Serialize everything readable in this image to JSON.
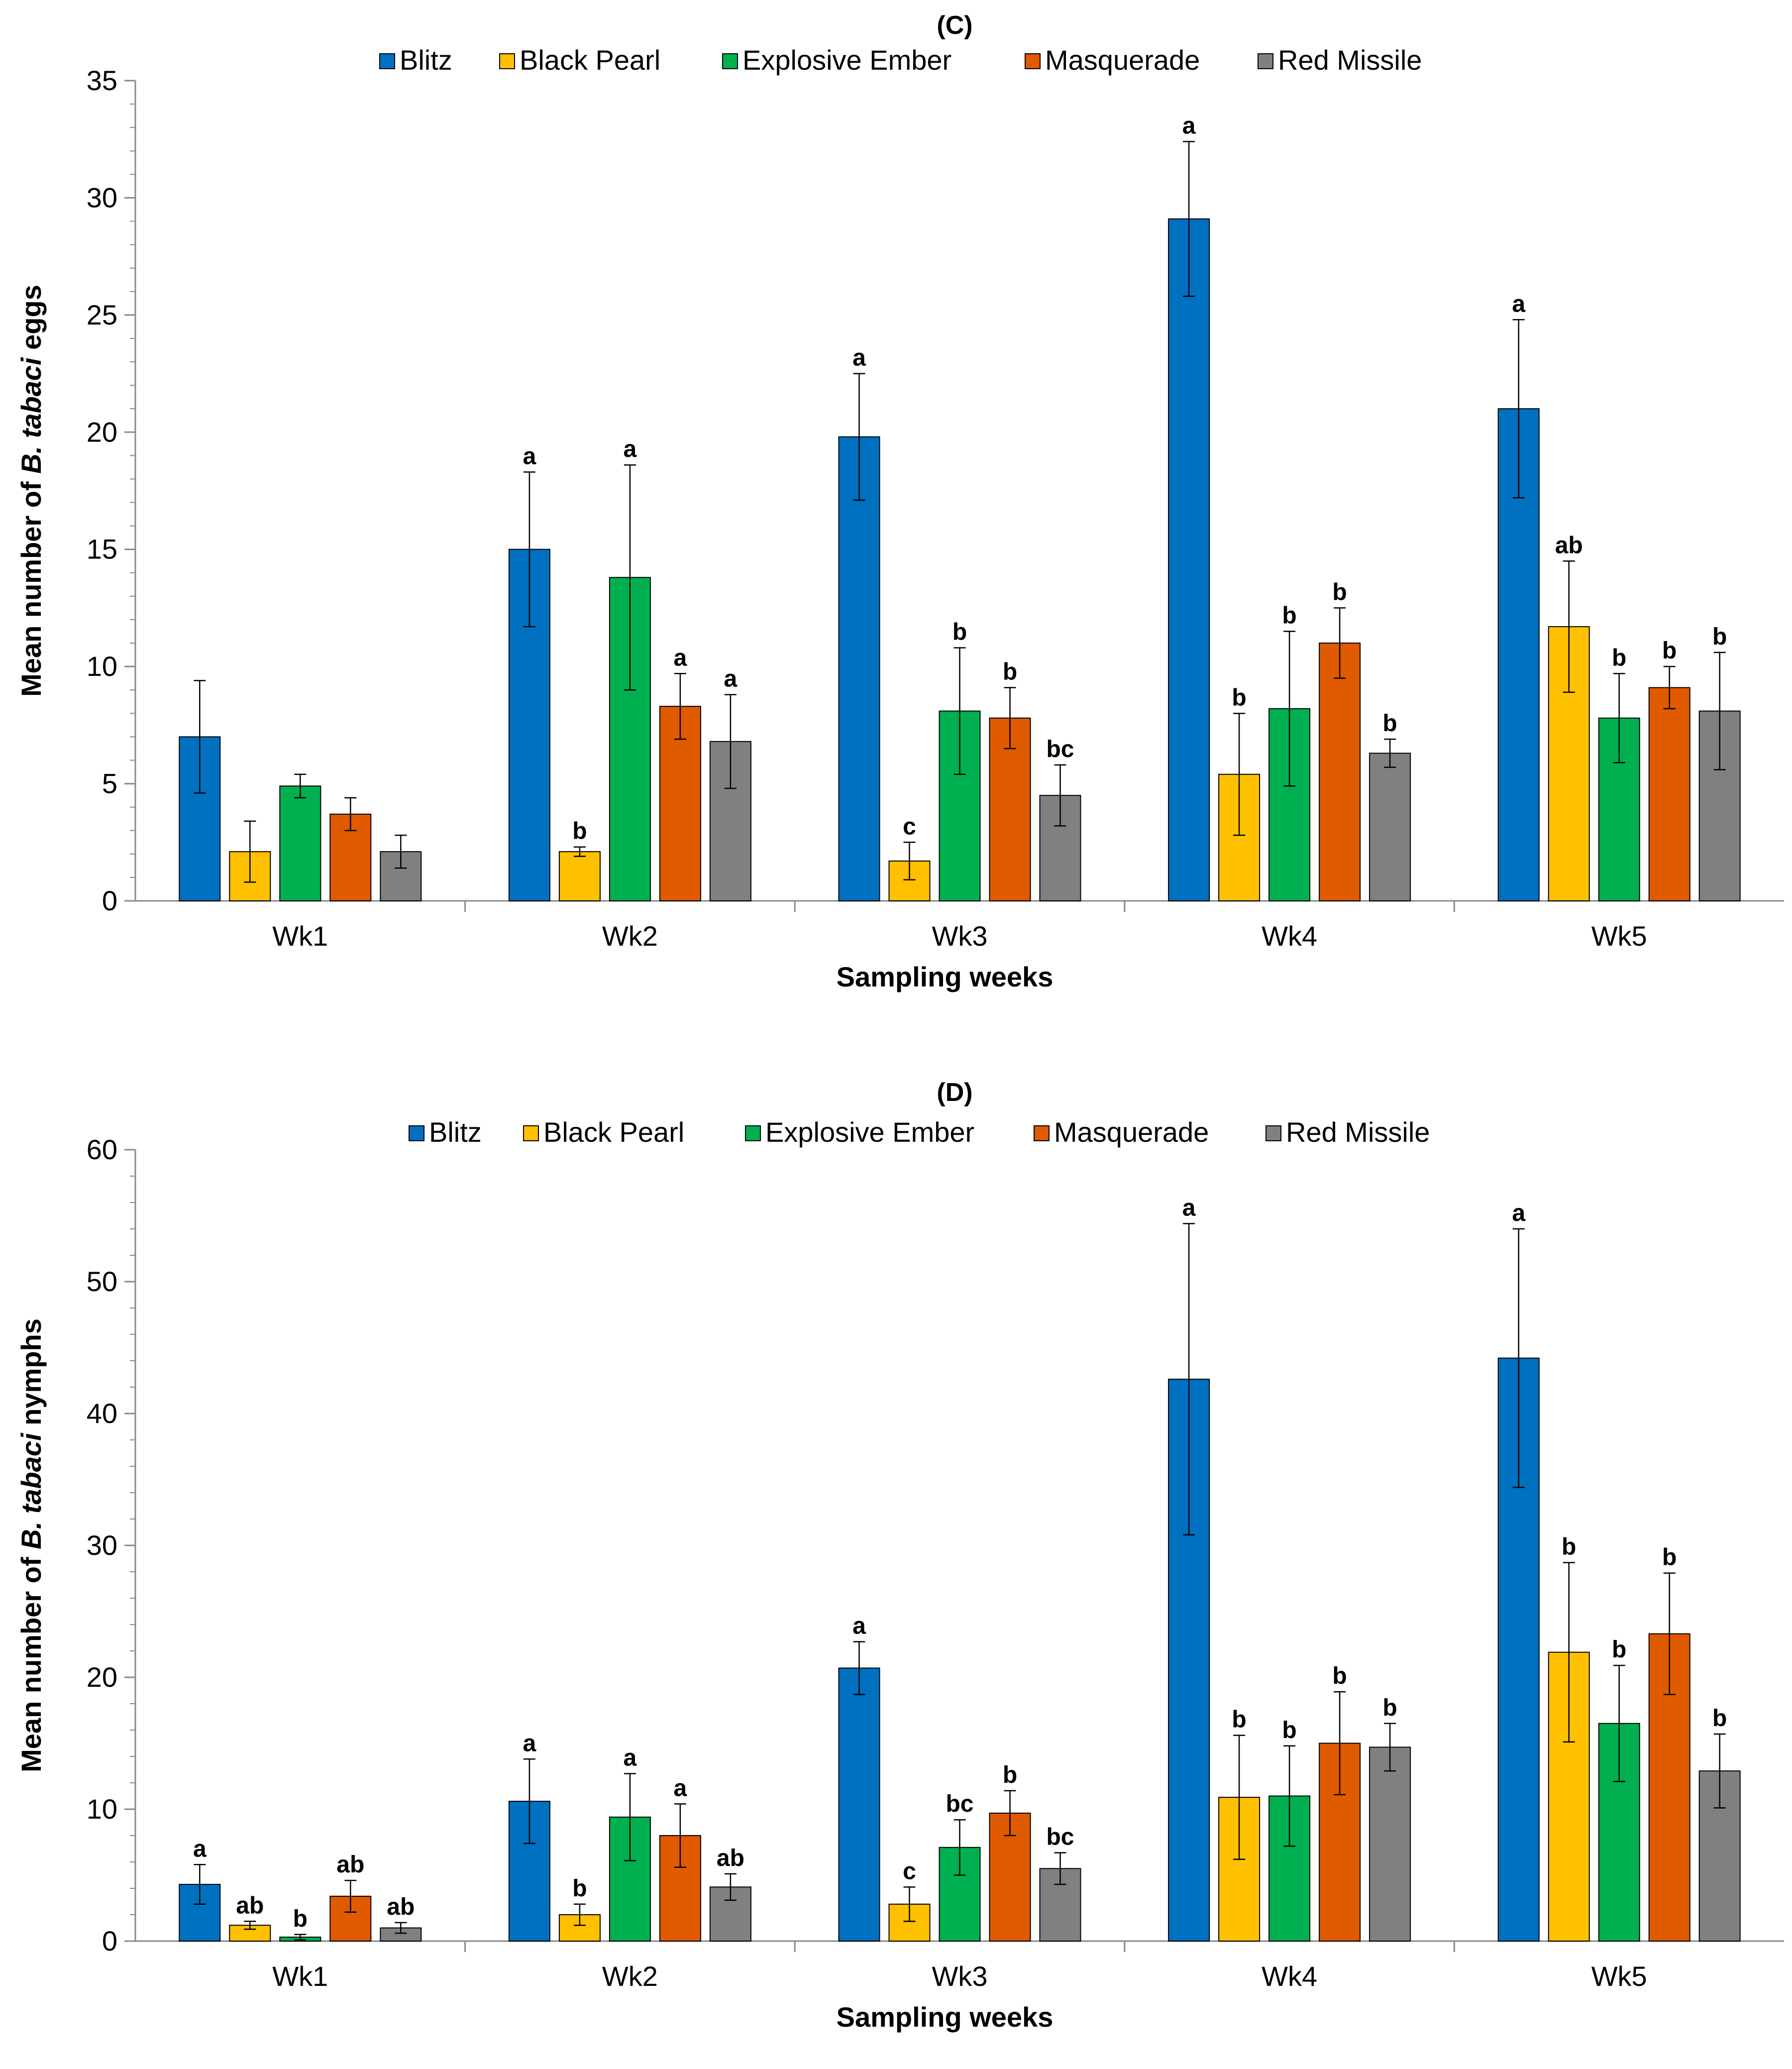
{
  "chart_data": [
    {
      "type": "bar",
      "panel_label": "(C)",
      "ylabel_prefix": "Mean number of ",
      "ylabel_italic": "B. tabaci",
      "ylabel_suffix": " eggs",
      "xlabel": "Sampling weeks",
      "ylim": [
        0,
        35
      ],
      "yticks": [
        0,
        5,
        10,
        15,
        20,
        25,
        30,
        35
      ],
      "grid": false,
      "legend_position": "top",
      "categories": [
        "Wk1",
        "Wk2",
        "Wk3",
        "Wk4",
        "Wk5"
      ],
      "series": [
        {
          "name": "Blitz",
          "values": [
            7.0,
            15.0,
            19.8,
            29.1,
            21.0
          ],
          "errors": [
            2.4,
            3.3,
            2.7,
            3.3,
            3.8
          ],
          "labels": [
            "",
            "a",
            "a",
            "a",
            "a"
          ]
        },
        {
          "name": "Black Pearl",
          "values": [
            2.1,
            2.1,
            1.7,
            5.4,
            11.7
          ],
          "errors": [
            1.3,
            0.2,
            0.8,
            2.6,
            2.8
          ],
          "labels": [
            "",
            "b",
            "c",
            "b",
            "ab"
          ]
        },
        {
          "name": "Explosive Ember",
          "values": [
            4.9,
            13.8,
            8.1,
            8.2,
            7.8
          ],
          "errors": [
            0.5,
            4.8,
            2.7,
            3.3,
            1.9
          ],
          "labels": [
            "",
            "a",
            "b",
            "b",
            "b"
          ]
        },
        {
          "name": "Masquerade",
          "values": [
            3.7,
            8.3,
            7.8,
            11.0,
            9.1
          ],
          "errors": [
            0.7,
            1.4,
            1.3,
            1.5,
            0.9
          ],
          "labels": [
            "",
            "a",
            "b",
            "b",
            "b"
          ]
        },
        {
          "name": "Red Missile",
          "values": [
            2.1,
            6.8,
            4.5,
            6.3,
            8.1
          ],
          "errors": [
            0.7,
            2.0,
            1.3,
            0.6,
            2.5
          ],
          "labels": [
            "",
            "a",
            "bc",
            "b",
            "b"
          ]
        }
      ]
    },
    {
      "type": "bar",
      "panel_label": "(D)",
      "ylabel_prefix": "Mean number of ",
      "ylabel_italic": "B. tabaci",
      "ylabel_suffix": " nymphs",
      "xlabel": "Sampling weeks",
      "ylim": [
        0,
        60
      ],
      "yticks": [
        0,
        10,
        20,
        30,
        40,
        50,
        60
      ],
      "grid": false,
      "legend_position": "top",
      "categories": [
        "Wk1",
        "Wk2",
        "Wk3",
        "Wk4",
        "Wk5"
      ],
      "series": [
        {
          "name": "Blitz",
          "values": [
            4.3,
            10.6,
            20.7,
            42.6,
            44.2
          ],
          "errors": [
            1.5,
            3.2,
            2.0,
            11.8,
            9.8
          ],
          "labels": [
            "a",
            "a",
            "a",
            "a",
            "a"
          ]
        },
        {
          "name": "Black Pearl",
          "values": [
            1.2,
            2.0,
            2.8,
            10.9,
            21.9
          ],
          "errors": [
            0.3,
            0.8,
            1.3,
            4.7,
            6.8
          ],
          "labels": [
            "ab",
            "b",
            "c",
            "b",
            "b"
          ]
        },
        {
          "name": "Explosive Ember",
          "values": [
            0.3,
            9.4,
            7.1,
            11.0,
            16.5
          ],
          "errors": [
            0.2,
            3.3,
            2.1,
            3.8,
            4.4
          ],
          "labels": [
            "b",
            "a",
            "bc",
            "b",
            "b"
          ]
        },
        {
          "name": "Masquerade",
          "values": [
            3.4,
            8.0,
            9.7,
            15.0,
            23.3
          ],
          "errors": [
            1.2,
            2.4,
            1.7,
            3.9,
            4.6
          ],
          "labels": [
            "ab",
            "a",
            "b",
            "b",
            "b"
          ]
        },
        {
          "name": "Red Missile",
          "values": [
            1.0,
            4.1,
            5.5,
            14.7,
            12.9
          ],
          "errors": [
            0.4,
            1.0,
            1.2,
            1.8,
            2.8
          ],
          "labels": [
            "ab",
            "ab",
            "bc",
            "b",
            "b"
          ]
        }
      ]
    }
  ],
  "colors": {
    "Blitz": "#0070C0",
    "Black Pearl": "#FFC000",
    "Explosive Ember": "#00B050",
    "Masquerade": "#E05A00",
    "Red Missile": "#808080"
  }
}
